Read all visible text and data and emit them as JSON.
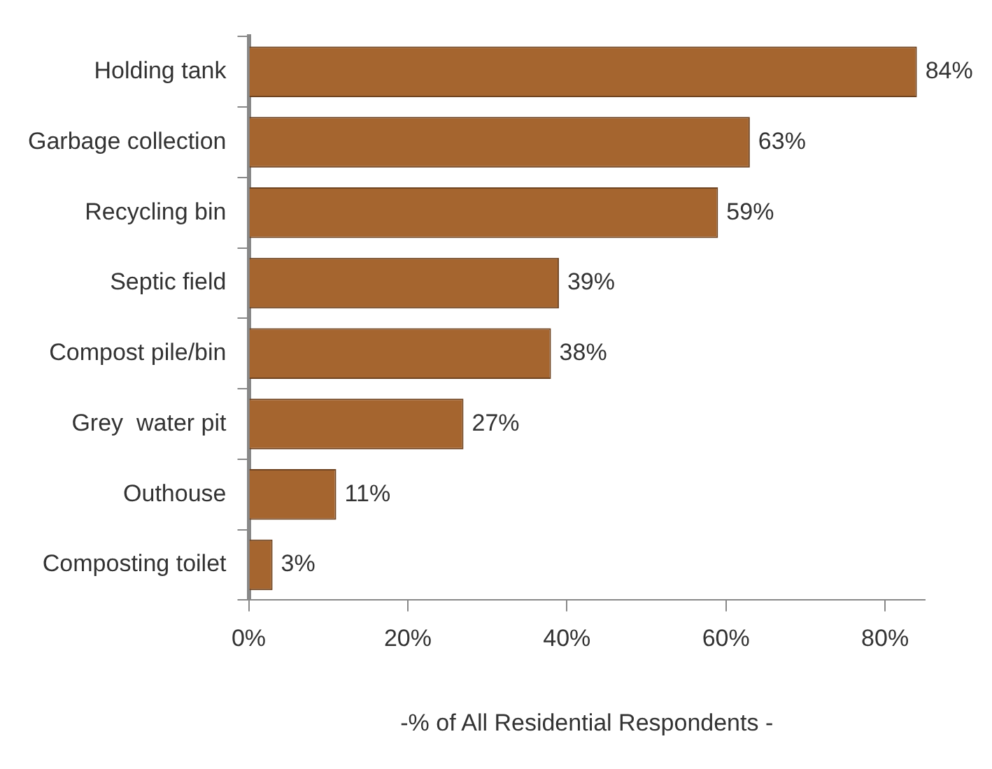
{
  "chart_data": {
    "type": "bar",
    "orientation": "horizontal",
    "xlabel": "-% of All Residential Respondents -",
    "categories": [
      "Holding tank",
      "Garbage collection",
      "Recycling bin",
      "Septic field",
      "Compost pile/bin",
      "Grey  water pit",
      "Outhouse",
      "Composting toilet"
    ],
    "values": [
      84,
      63,
      59,
      39,
      38,
      27,
      11,
      3
    ],
    "value_labels": [
      "84%",
      "63%",
      "59%",
      "39%",
      "38%",
      "27%",
      "11%",
      "3%"
    ],
    "color": "#a5652f",
    "xlim": [
      0,
      85
    ],
    "xticks": [
      {
        "value": 0,
        "label": "0%"
      },
      {
        "value": 20,
        "label": "20%"
      },
      {
        "value": 40,
        "label": "40%"
      },
      {
        "value": 60,
        "label": "60%"
      },
      {
        "value": 80,
        "label": "80%"
      }
    ],
    "grid": false,
    "legend": false
  }
}
